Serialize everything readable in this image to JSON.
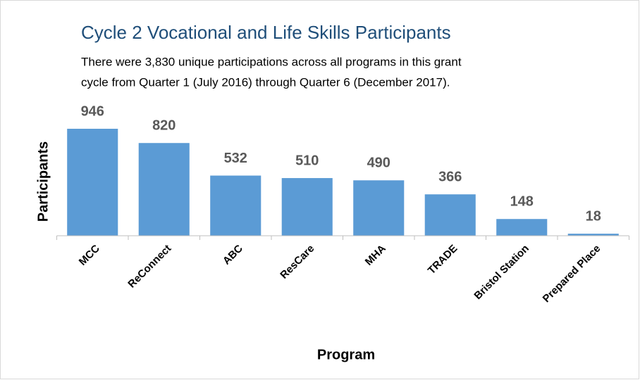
{
  "chart_data": {
    "type": "bar",
    "title": "Cycle 2 Vocational and Life Skills Participants",
    "subtitle": [
      "There were 3,830 unique participations across all programs in this grant",
      "cycle from Quarter 1 (July 2016) through Quarter 6 (December 2017)."
    ],
    "x_label": "Program",
    "y_label": "Participants",
    "categories": [
      "MCC",
      "ReConnect",
      "ABC",
      "ResCare",
      "MHA",
      "TRADE",
      "Bristol Station",
      "Prepared Place"
    ],
    "values": [
      946,
      820,
      532,
      510,
      490,
      366,
      148,
      18
    ],
    "color": "#5b9bd5",
    "ylim": [
      0,
      1000
    ]
  }
}
